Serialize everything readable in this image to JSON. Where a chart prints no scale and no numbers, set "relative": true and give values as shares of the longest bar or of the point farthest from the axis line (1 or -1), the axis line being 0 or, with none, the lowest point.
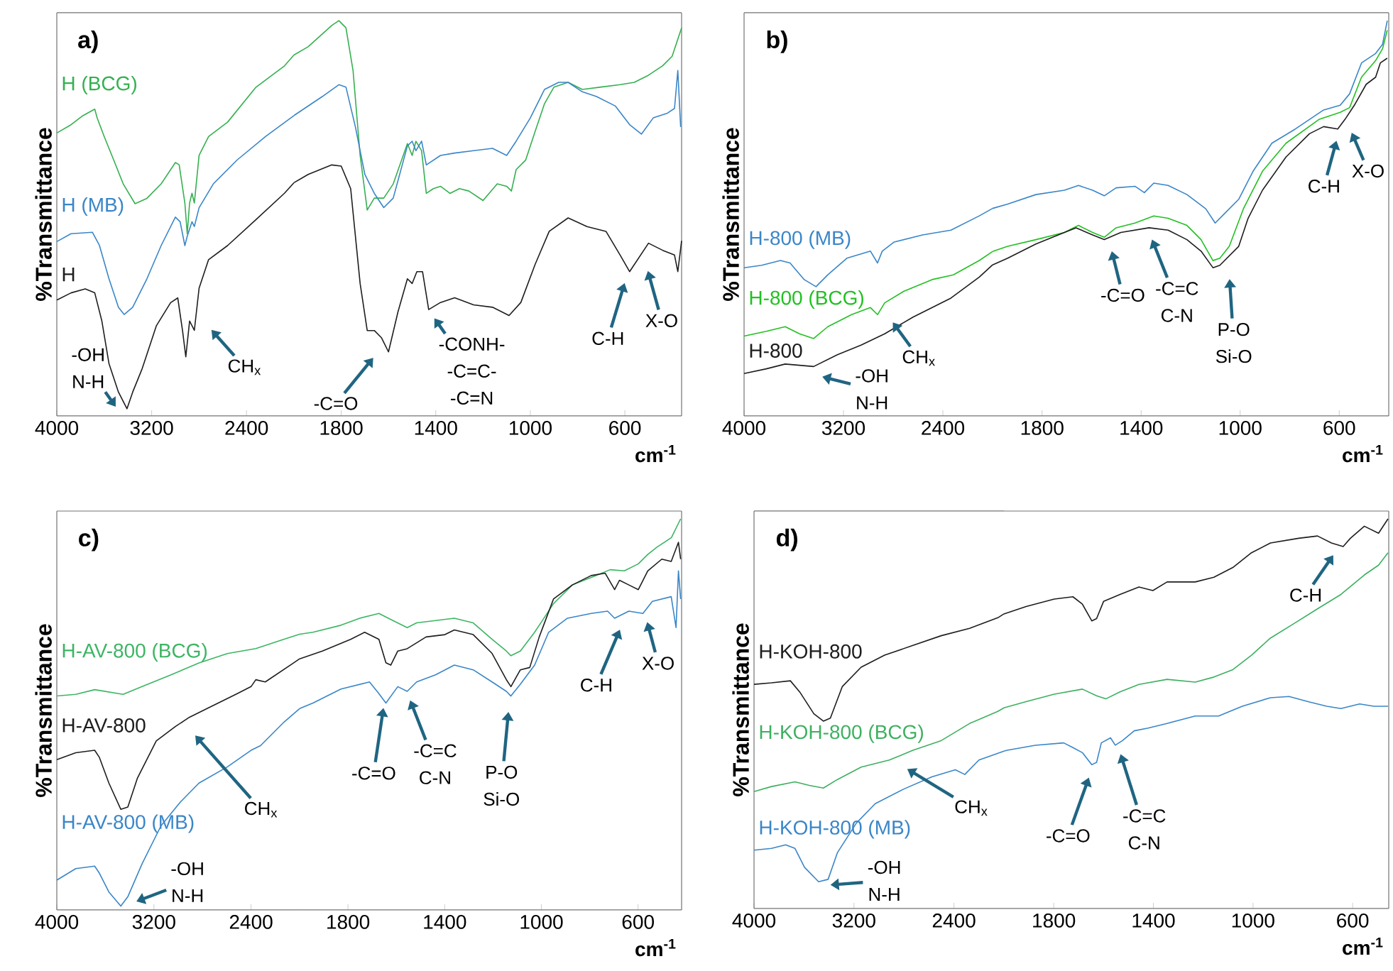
{
  "chart_data": [
    {
      "type": "line",
      "title": "a)",
      "ylabel": "%Transmittance",
      "relative": true,
      "xlim": [
        4000,
        2000
      ],
      "xticks": [
        4000,
        3200,
        2400
      ],
      "series": [
        {
          "name": "H (BCG)",
          "color": "#35b050",
          "x": [
            4000,
            3880,
            3780,
            3680,
            3660,
            3600,
            3520,
            3440,
            3340,
            3240,
            3120,
            3000,
            2968,
            2920,
            2900,
            2880,
            2860,
            2840,
            2800,
            2720,
            2560,
            2320,
            2080,
            2000
          ],
          "values": [
            0.784,
            0.807,
            0.832,
            0.85,
            0.826,
            0.774,
            0.709,
            0.643,
            0.588,
            0.603,
            0.643,
            0.702,
            0.696,
            0.59,
            0.505,
            0.59,
            0.617,
            0.59,
            0.722,
            0.774,
            0.814,
            0.911,
            0.97,
            1.0
          ]
        },
        {
          "name": "H (MB)",
          "color": "#3a86c8",
          "x": [
            4000,
            3880,
            3700,
            3640,
            3560,
            3480,
            3432,
            3360,
            3240,
            3120,
            3000,
            2960,
            2920,
            2900,
            2860,
            2840,
            2800,
            2680,
            2480,
            2240,
            2000
          ],
          "values": [
            0.483,
            0.505,
            0.509,
            0.472,
            0.38,
            0.301,
            0.281,
            0.301,
            0.38,
            0.472,
            0.551,
            0.538,
            0.472,
            0.498,
            0.538,
            0.525,
            0.577,
            0.643,
            0.709,
            0.774,
            0.832
          ]
        },
        {
          "name": "H",
          "color": "#1e1e1e",
          "x": [
            4000,
            3880,
            3760,
            3680,
            3620,
            3560,
            3480,
            3408,
            3360,
            3280,
            3160,
            3040,
            2980,
            2940,
            2912,
            2880,
            2840,
            2800,
            2720,
            2560,
            2320,
            2080,
            2000
          ],
          "values": [
            0.321,
            0.341,
            0.352,
            0.341,
            0.263,
            0.145,
            0.066,
            0.02,
            0.066,
            0.131,
            0.25,
            0.314,
            0.327,
            0.237,
            0.164,
            0.263,
            0.237,
            0.354,
            0.433,
            0.472,
            0.544,
            0.617,
            0.646
          ]
        }
      ],
      "annotations": [
        "-OH",
        "N-H",
        "CH$_{x}$"
      ]
    },
    {
      "type": "line",
      "xlabel": "cm$^{-1}$",
      "relative": true,
      "xlim": [
        2000,
        360
      ],
      "xticks": [
        1800,
        1400,
        1000,
        600
      ],
      "series": [
        {
          "color": "#35b050",
          "x": [
            2000,
            1940,
            1840,
            1810,
            1780,
            1750,
            1720,
            1690,
            1660,
            1620,
            1580,
            1520,
            1500,
            1484,
            1460,
            1440,
            1410,
            1380,
            1340,
            1300,
            1260,
            1200,
            1140,
            1100,
            1080,
            1060,
            1020,
            980,
            940,
            900,
            840,
            780,
            700,
            620,
            560,
            500,
            440,
            400,
            360
          ],
          "values": [
            0.913,
            0.934,
            0.988,
            1.0,
            0.982,
            0.874,
            0.659,
            0.521,
            0.551,
            0.551,
            0.587,
            0.689,
            0.659,
            0.695,
            0.671,
            0.563,
            0.575,
            0.581,
            0.563,
            0.575,
            0.569,
            0.545,
            0.587,
            0.581,
            0.569,
            0.623,
            0.647,
            0.719,
            0.79,
            0.832,
            0.844,
            0.826,
            0.832,
            0.838,
            0.844,
            0.862,
            0.886,
            0.91,
            0.982
          ]
        },
        {
          "color": "#3a86c8",
          "x": [
            2000,
            1880,
            1810,
            1780,
            1740,
            1700,
            1660,
            1620,
            1580,
            1520,
            1500,
            1484,
            1460,
            1440,
            1380,
            1320,
            1240,
            1160,
            1100,
            1060,
            1000,
            940,
            880,
            840,
            780,
            720,
            640,
            580,
            530,
            480,
            420,
            390,
            376,
            364
          ],
          "values": [
            0.76,
            0.808,
            0.838,
            0.832,
            0.731,
            0.611,
            0.563,
            0.527,
            0.551,
            0.683,
            0.695,
            0.671,
            0.695,
            0.635,
            0.659,
            0.665,
            0.671,
            0.677,
            0.659,
            0.695,
            0.754,
            0.826,
            0.844,
            0.844,
            0.82,
            0.808,
            0.784,
            0.737,
            0.713,
            0.754,
            0.766,
            0.778,
            0.874,
            0.731
          ]
        },
        {
          "color": "#1e1e1e",
          "x": [
            2000,
            1940,
            1840,
            1800,
            1760,
            1720,
            1690,
            1660,
            1630,
            1600,
            1560,
            1520,
            1500,
            1480,
            1456,
            1430,
            1380,
            1320,
            1240,
            1160,
            1090,
            1040,
            980,
            920,
            840,
            760,
            680,
            620,
            580,
            540,
            500,
            440,
            390,
            376,
            360
          ],
          "values": [
            0.59,
            0.611,
            0.635,
            0.632,
            0.575,
            0.335,
            0.216,
            0.216,
            0.198,
            0.162,
            0.263,
            0.347,
            0.335,
            0.365,
            0.365,
            0.269,
            0.287,
            0.299,
            0.281,
            0.275,
            0.254,
            0.287,
            0.383,
            0.467,
            0.501,
            0.479,
            0.467,
            0.407,
            0.365,
            0.401,
            0.437,
            0.419,
            0.407,
            0.365,
            0.443
          ]
        }
      ],
      "annotations": [
        "-C=O",
        "-CONH-",
        "-C=C-",
        "-C=N",
        "C-H",
        "X-O"
      ]
    },
    {
      "type": "line",
      "title": "b)",
      "ylabel": "%Transmittance",
      "relative": true,
      "xlim": [
        4000,
        2000
      ],
      "xticks": [
        4000,
        3200,
        2400
      ],
      "series": [
        {
          "name": "H-800 (MB)",
          "color": "#3a86c8",
          "x": [
            4000,
            3859,
            3707,
            3630,
            3516,
            3421,
            3326,
            3173,
            2983,
            2926,
            2888,
            2792,
            2564,
            2335,
            2107,
            2000
          ],
          "values": [
            0.714,
            0.726,
            0.749,
            0.737,
            0.657,
            0.623,
            0.68,
            0.76,
            0.794,
            0.737,
            0.794,
            0.838,
            0.872,
            0.895,
            0.964,
            1.0
          ]
        },
        {
          "name": "H-800 (BCG)",
          "color": "#22c022",
          "x": [
            4000,
            3821,
            3669,
            3554,
            3440,
            3326,
            3135,
            2983,
            2926,
            2868,
            2716,
            2487,
            2316,
            2107,
            2000
          ],
          "values": [
            0.385,
            0.408,
            0.43,
            0.396,
            0.373,
            0.43,
            0.488,
            0.522,
            0.488,
            0.545,
            0.6,
            0.657,
            0.68,
            0.749,
            0.792
          ]
        },
        {
          "name": "H-800",
          "color": "#1e1e1e",
          "x": [
            4000,
            3821,
            3669,
            3440,
            3249,
            3059,
            2868,
            2640,
            2335,
            2107,
            2000
          ],
          "values": [
            0.204,
            0.227,
            0.25,
            0.238,
            0.295,
            0.341,
            0.396,
            0.476,
            0.568,
            0.669,
            0.728
          ]
        }
      ],
      "annotations": [
        "-OH",
        "N-H",
        "CH$_{x}$"
      ]
    },
    {
      "type": "line",
      "xlabel": "cm$^{-1}$",
      "relative": true,
      "xlim": [
        2000,
        400
      ],
      "xticks": [
        1800,
        1400,
        1000,
        600
      ],
      "series": [
        {
          "color": "#3a86c8",
          "x": [
            2000,
            1939,
            1825,
            1710,
            1653,
            1596,
            1549,
            1501,
            1425,
            1387,
            1349,
            1291,
            1215,
            1139,
            1101,
            1063,
            1006,
            948,
            872,
            777,
            663,
            596,
            558,
            510,
            453,
            425,
            406
          ],
          "values": [
            0.525,
            0.536,
            0.56,
            0.571,
            0.583,
            0.571,
            0.557,
            0.577,
            0.581,
            0.565,
            0.589,
            0.583,
            0.56,
            0.524,
            0.488,
            0.512,
            0.548,
            0.619,
            0.69,
            0.726,
            0.774,
            0.786,
            0.815,
            0.893,
            0.917,
            0.94,
            1.0
          ]
        },
        {
          "color": "#22c022",
          "x": [
            2000,
            1939,
            1825,
            1710,
            1653,
            1596,
            1549,
            1501,
            1425,
            1349,
            1291,
            1215,
            1158,
            1110,
            1082,
            1044,
            987,
            910,
            815,
            682,
            596,
            558,
            510,
            453,
            425,
            406
          ],
          "values": [
            0.416,
            0.429,
            0.446,
            0.464,
            0.482,
            0.464,
            0.452,
            0.476,
            0.488,
            0.506,
            0.5,
            0.482,
            0.446,
            0.393,
            0.399,
            0.429,
            0.524,
            0.619,
            0.69,
            0.75,
            0.768,
            0.78,
            0.857,
            0.899,
            0.929,
            0.976
          ]
        },
        {
          "color": "#1e1e1e",
          "x": [
            2000,
            1939,
            1825,
            1710,
            1663,
            1596,
            1549,
            1482,
            1368,
            1291,
            1215,
            1158,
            1110,
            1082,
            1044,
            1006,
            968,
            910,
            815,
            720,
            663,
            606,
            577,
            539,
            491,
            453,
            434,
            406
          ],
          "values": [
            0.382,
            0.399,
            0.435,
            0.464,
            0.476,
            0.458,
            0.446,
            0.464,
            0.476,
            0.47,
            0.446,
            0.417,
            0.375,
            0.381,
            0.405,
            0.429,
            0.5,
            0.571,
            0.655,
            0.714,
            0.732,
            0.726,
            0.75,
            0.786,
            0.839,
            0.857,
            0.893,
            0.905
          ]
        }
      ],
      "annotations": [
        "-C=O",
        "-C=C",
        "C-N",
        "P-O",
        "Si-O",
        "C-H",
        "X-O"
      ]
    },
    {
      "type": "line",
      "title": "c)",
      "ylabel": "%Transmittance",
      "relative": true,
      "xlim": [
        4000,
        2000
      ],
      "xticks": [
        4000,
        3200,
        2400
      ],
      "series": [
        {
          "name": "H-AV-800 (BCG)",
          "color": "#3cb563",
          "x": [
            4000,
            3844,
            3688,
            3454,
            3298,
            3063,
            2829,
            2595,
            2361,
            2127,
            2000
          ],
          "values": [
            0.776,
            0.782,
            0.799,
            0.782,
            0.81,
            0.852,
            0.896,
            0.93,
            0.948,
            0.982,
            1.0
          ]
        },
        {
          "name": "H-AV-800",
          "color": "#1e1e1e",
          "x": [
            4000,
            3844,
            3688,
            3649,
            3571,
            3473,
            3415,
            3337,
            3181,
            3024,
            2907,
            2751,
            2517,
            2400,
            2361,
            2283,
            2049,
            2000
          ],
          "values": [
            0.545,
            0.57,
            0.579,
            0.553,
            0.46,
            0.365,
            0.373,
            0.477,
            0.613,
            0.665,
            0.699,
            0.733,
            0.784,
            0.81,
            0.835,
            0.827,
            0.896,
            0.911
          ]
        },
        {
          "name": "H-AV-800 (MB)",
          "color": "#3a86c8",
          "x": [
            4000,
            3844,
            3688,
            3649,
            3571,
            3473,
            3415,
            3298,
            3142,
            2985,
            2829,
            2595,
            2400,
            2322,
            2127,
            2000
          ],
          "values": [
            0.108,
            0.15,
            0.159,
            0.133,
            0.065,
            0.014,
            0.048,
            0.167,
            0.305,
            0.39,
            0.46,
            0.519,
            0.579,
            0.596,
            0.682,
            0.73
          ]
        }
      ],
      "annotations": [
        "CH$_{x}$",
        "-OH",
        "N-H"
      ]
    },
    {
      "type": "line",
      "xlabel": "cm$^{-1}$",
      "relative": true,
      "xlim": [
        2000,
        420
      ],
      "xticks": [
        1800,
        1400,
        1000,
        600
      ],
      "series": [
        {
          "color": "#3cb563",
          "x": [
            2000,
            1945,
            1829,
            1751,
            1672,
            1614,
            1555,
            1516,
            1438,
            1360,
            1282,
            1204,
            1145,
            1126,
            1087,
            1028,
            950,
            872,
            775,
            716,
            657,
            599,
            560,
            521,
            462,
            424
          ],
          "values": [
            0.705,
            0.71,
            0.728,
            0.746,
            0.758,
            0.74,
            0.722,
            0.734,
            0.74,
            0.746,
            0.734,
            0.692,
            0.662,
            0.65,
            0.662,
            0.71,
            0.783,
            0.831,
            0.855,
            0.87,
            0.867,
            0.885,
            0.909,
            0.928,
            0.952,
            1.0
          ]
        },
        {
          "color": "#1e1e1e",
          "x": [
            2000,
            1906,
            1789,
            1731,
            1672,
            1643,
            1623,
            1594,
            1555,
            1477,
            1399,
            1360,
            1282,
            1204,
            1145,
            1126,
            1087,
            1048,
            1009,
            950,
            872,
            794,
            736,
            697,
            677,
            638,
            599,
            560,
            502,
            463,
            433,
            424
          ],
          "values": [
            0.642,
            0.662,
            0.692,
            0.71,
            0.692,
            0.632,
            0.626,
            0.662,
            0.668,
            0.698,
            0.704,
            0.716,
            0.704,
            0.656,
            0.589,
            0.571,
            0.614,
            0.62,
            0.698,
            0.795,
            0.831,
            0.855,
            0.861,
            0.819,
            0.843,
            0.831,
            0.819,
            0.867,
            0.897,
            0.891,
            0.94,
            0.897
          ]
        },
        {
          "color": "#3a86c8",
          "x": [
            2000,
            1945,
            1829,
            1711,
            1672,
            1643,
            1594,
            1555,
            1516,
            1438,
            1360,
            1282,
            1204,
            1145,
            1126,
            1087,
            1028,
            970,
            892,
            794,
            726,
            697,
            638,
            580,
            541,
            463,
            443,
            433,
            424
          ],
          "values": [
            0.515,
            0.529,
            0.565,
            0.583,
            0.553,
            0.529,
            0.571,
            0.559,
            0.583,
            0.601,
            0.626,
            0.614,
            0.583,
            0.559,
            0.547,
            0.577,
            0.626,
            0.71,
            0.746,
            0.758,
            0.764,
            0.746,
            0.764,
            0.758,
            0.789,
            0.801,
            0.722,
            0.867,
            0.795
          ]
        }
      ],
      "annotations": [
        "-C=O",
        "-C=C",
        "C-N",
        "P-O",
        "Si-O",
        "C-H",
        "X-O"
      ]
    },
    {
      "type": "line",
      "title": "d)",
      "ylabel": "%Transmittance",
      "relative": true,
      "xlim": [
        4000,
        2000
      ],
      "xticks": [
        4000,
        3200,
        2400
      ],
      "series": [
        {
          "name": "H-KOH-800",
          "color": "#1e1e1e",
          "x": [
            4000,
            3860,
            3709,
            3634,
            3521,
            3445,
            3389,
            3294,
            3143,
            2955,
            2728,
            2502,
            2275,
            2049,
            2000
          ],
          "values": [
            0.761,
            0.766,
            0.773,
            0.735,
            0.661,
            0.636,
            0.646,
            0.753,
            0.819,
            0.86,
            0.893,
            0.926,
            0.951,
            0.987,
            1.0
          ]
        },
        {
          "name": "H-KOH-800 (BCG)",
          "color": "#3db060",
          "x": [
            4000,
            3860,
            3672,
            3558,
            3445,
            3332,
            3143,
            2917,
            2728,
            2502,
            2275,
            2049,
            2000
          ],
          "values": [
            0.397,
            0.414,
            0.43,
            0.418,
            0.409,
            0.438,
            0.48,
            0.504,
            0.537,
            0.57,
            0.628,
            0.669,
            0.681
          ]
        },
        {
          "name": "H-KOH-800 (MB)",
          "color": "#3a86c8",
          "x": [
            4000,
            3860,
            3747,
            3672,
            3596,
            3483,
            3407,
            3332,
            3181,
            3030,
            2804,
            2577,
            2389,
            2313,
            2200,
            2000
          ],
          "values": [
            0.198,
            0.204,
            0.216,
            0.204,
            0.14,
            0.091,
            0.099,
            0.19,
            0.29,
            0.356,
            0.405,
            0.447,
            0.471,
            0.455,
            0.504,
            0.534
          ]
        }
      ],
      "annotations": [
        "CH$_{x}$",
        "-OH",
        "N-H"
      ]
    },
    {
      "type": "line",
      "xlabel": "cm$^{-1}$",
      "relative": true,
      "xlim": [
        2000,
        455
      ],
      "xticks": [
        1800,
        1400,
        1000,
        600
      ],
      "series": [
        {
          "color": "#1e1e1e",
          "x": [
            2000,
            1911,
            1798,
            1723,
            1685,
            1647,
            1628,
            1600,
            1534,
            1458,
            1402,
            1345,
            1232,
            1157,
            1081,
            1006,
            930,
            817,
            741,
            685,
            638,
            609,
            553,
            496,
            458
          ],
          "values": [
            0.756,
            0.775,
            0.794,
            0.8,
            0.781,
            0.738,
            0.744,
            0.788,
            0.806,
            0.825,
            0.816,
            0.838,
            0.838,
            0.85,
            0.875,
            0.913,
            0.938,
            0.95,
            0.956,
            0.938,
            0.929,
            0.95,
            0.981,
            0.963,
            1.0
          ]
        },
        {
          "color": "#3db060",
          "x": [
            2000,
            1911,
            1798,
            1685,
            1628,
            1591,
            1534,
            1458,
            1345,
            1232,
            1157,
            1081,
            1006,
            930,
            836,
            741,
            647,
            553,
            496,
            458
          ],
          "values": [
            0.515,
            0.531,
            0.55,
            0.563,
            0.546,
            0.538,
            0.556,
            0.575,
            0.588,
            0.581,
            0.594,
            0.613,
            0.65,
            0.694,
            0.731,
            0.769,
            0.806,
            0.856,
            0.881,
            0.913
          ]
        },
        {
          "color": "#3a86c8",
          "x": [
            2000,
            1987,
            1874,
            1760,
            1723,
            1685,
            1647,
            1628,
            1609,
            1572,
            1553,
            1524,
            1477,
            1421,
            1345,
            1232,
            1138,
            1043,
            930,
            855,
            779,
            704,
            647,
            572,
            515,
            458
          ],
          "values": [
            0.404,
            0.406,
            0.419,
            0.425,
            0.413,
            0.4,
            0.369,
            0.375,
            0.425,
            0.438,
            0.419,
            0.431,
            0.456,
            0.463,
            0.475,
            0.494,
            0.494,
            0.519,
            0.541,
            0.544,
            0.531,
            0.519,
            0.513,
            0.525,
            0.519,
            0.519
          ]
        }
      ],
      "annotations": [
        "C-H",
        "-C=O",
        "-C=C",
        "C-N"
      ]
    }
  ]
}
